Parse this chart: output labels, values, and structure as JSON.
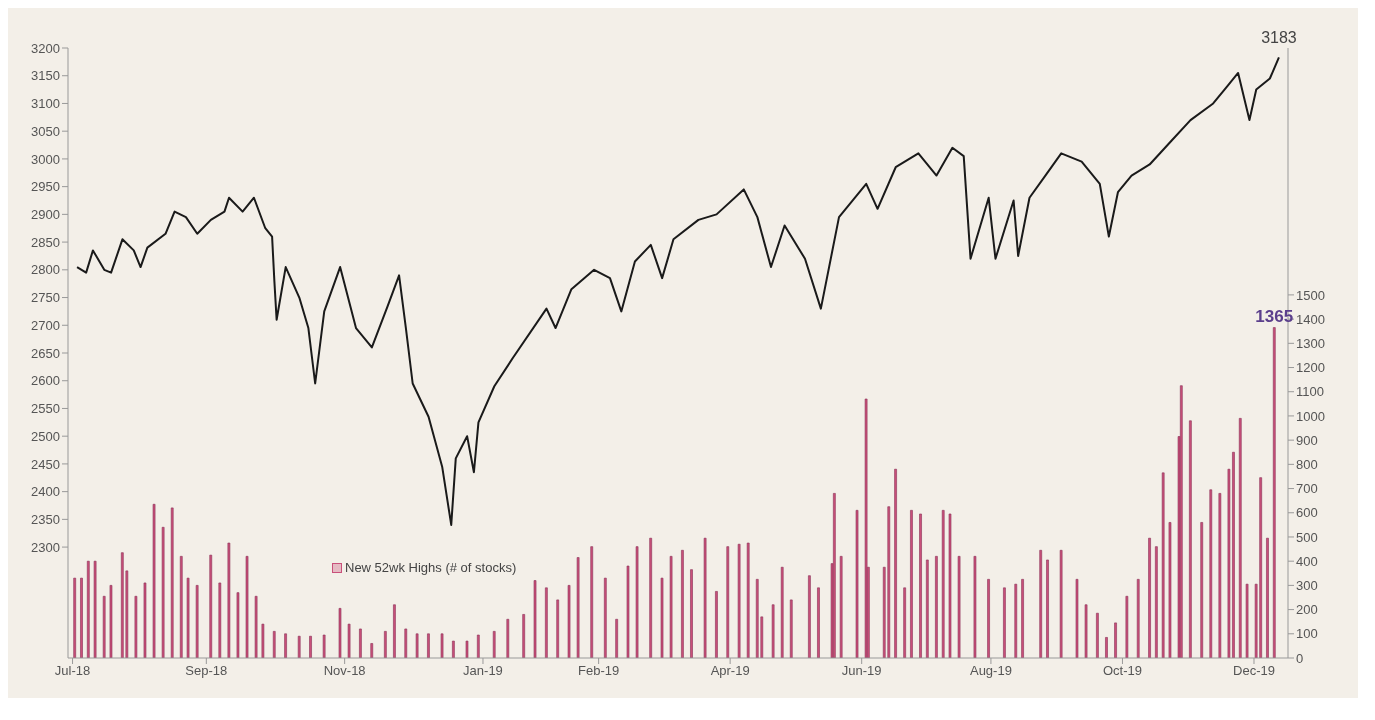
{
  "chart_data": {
    "type": "line",
    "xlim": [
      "2018-07-02",
      "2019-12-22"
    ],
    "xticks": [
      {
        "value": "2018-07-04",
        "label": "Jul-18"
      },
      {
        "value": "2018-09-01",
        "label": "Sep-18"
      },
      {
        "value": "2018-11-01",
        "label": "Nov-18"
      },
      {
        "value": "2019-01-01",
        "label": "Jan-19"
      },
      {
        "value": "2019-02-21",
        "label": "Feb-19"
      },
      {
        "value": "2019-04-20",
        "label": "Apr-19"
      },
      {
        "value": "2019-06-17",
        "label": "Jun-19"
      },
      {
        "value": "2019-08-13",
        "label": "Aug-19"
      },
      {
        "value": "2019-10-10",
        "label": "Oct-19"
      },
      {
        "value": "2019-12-07",
        "label": "Dec-19"
      }
    ],
    "ylim": [
      2100,
      3200
    ],
    "yticks": [
      2300,
      2350,
      2400,
      2450,
      2500,
      2550,
      2600,
      2650,
      2700,
      2750,
      2800,
      2850,
      2900,
      2950,
      3000,
      3050,
      3100,
      3150,
      3200
    ],
    "y2lim": [
      0,
      2520
    ],
    "y2ticks": [
      0,
      100,
      200,
      300,
      400,
      500,
      600,
      700,
      800,
      900,
      1000,
      1100,
      1200,
      1300,
      1400,
      1500
    ],
    "legend": "bottom left",
    "series": [
      {
        "color": "#1a1a1a",
        "x": [
          "2018-07-06",
          "2018-07-10",
          "2018-07-13",
          "2018-07-18",
          "2018-07-21",
          "2018-07-26",
          "2018-07-31",
          "2018-08-03",
          "2018-08-06",
          "2018-08-14",
          "2018-08-18",
          "2018-08-23",
          "2018-08-28",
          "2018-09-03",
          "2018-09-09",
          "2018-09-11",
          "2018-09-17",
          "2018-09-22",
          "2018-09-27",
          "2018-09-30",
          "2018-10-01",
          "2018-10-02",
          "2018-10-06",
          "2018-10-12",
          "2018-10-16",
          "2018-10-19",
          "2018-10-23",
          "2018-10-30",
          "2018-11-06",
          "2018-11-13",
          "2018-11-20",
          "2018-11-25",
          "2018-11-28",
          "2018-12-01",
          "2018-12-08",
          "2018-12-14",
          "2018-12-18",
          "2018-12-20",
          "2018-12-25",
          "2018-12-28",
          "2018-12-30",
          "2019-01-06",
          "2019-01-14",
          "2019-01-29",
          "2019-02-02",
          "2019-02-09",
          "2019-02-19",
          "2019-02-26",
          "2019-03-03",
          "2019-03-09",
          "2019-03-16",
          "2019-03-21",
          "2019-03-26",
          "2019-04-06",
          "2019-04-14",
          "2019-04-26",
          "2019-05-02",
          "2019-05-08",
          "2019-05-14",
          "2019-05-23",
          "2019-05-30",
          "2019-06-07",
          "2019-06-19",
          "2019-06-24",
          "2019-07-02",
          "2019-07-12",
          "2019-07-20",
          "2019-07-27",
          "2019-08-01",
          "2019-08-04",
          "2019-08-12",
          "2019-08-15",
          "2019-08-23",
          "2019-08-25",
          "2019-08-30",
          "2019-09-06",
          "2019-09-13",
          "2019-09-22",
          "2019-09-30",
          "2019-10-04",
          "2019-10-08",
          "2019-10-14",
          "2019-10-22",
          "2019-10-31",
          "2019-11-09",
          "2019-11-19",
          "2019-11-25",
          "2019-11-30",
          "2019-12-05",
          "2019-12-08",
          "2019-12-14",
          "2019-12-18"
        ],
        "values": [
          2805,
          2795,
          2835,
          2800,
          2795,
          2855,
          2835,
          2805,
          2840,
          2865,
          2905,
          2895,
          2865,
          2890,
          2905,
          2930,
          2905,
          2930,
          2875,
          2860,
          2780,
          2710,
          2805,
          2750,
          2695,
          2595,
          2725,
          2805,
          2695,
          2660,
          2735,
          2790,
          2695,
          2595,
          2535,
          2445,
          2340,
          2460,
          2500,
          2435,
          2525,
          2590,
          2640,
          2730,
          2695,
          2765,
          2800,
          2785,
          2725,
          2815,
          2845,
          2785,
          2855,
          2890,
          2900,
          2945,
          2895,
          2805,
          2880,
          2820,
          2730,
          2895,
          2955,
          2910,
          2985,
          3010,
          2970,
          3020,
          3005,
          2820,
          2930,
          2820,
          2925,
          2825,
          2930,
          2970,
          3010,
          2995,
          2955,
          2860,
          2940,
          2970,
          2990,
          3030,
          3070,
          3100,
          3130,
          3155,
          3070,
          3125,
          3145,
          3183
        ],
        "value_labels": [
          null,
          null,
          null,
          null,
          null,
          null,
          null,
          null,
          null,
          null,
          null,
          null,
          null,
          null,
          null,
          null,
          null,
          null,
          null,
          null,
          null,
          null,
          null,
          null,
          null,
          null,
          null,
          null,
          null,
          null,
          null,
          null,
          null,
          null,
          null,
          null,
          null,
          null,
          null,
          null,
          null,
          null,
          null,
          null,
          null,
          null,
          null,
          null,
          null,
          null,
          null,
          null,
          null,
          null,
          null,
          null,
          null,
          null,
          null,
          null,
          null,
          null,
          null,
          null,
          null,
          null,
          null,
          null,
          null,
          null,
          null,
          null,
          null,
          null,
          null,
          null,
          null,
          null,
          null,
          null,
          null,
          null,
          null,
          null,
          null,
          null,
          null,
          null,
          null,
          null,
          null,
          "3183"
        ]
      },
      {
        "type": "bar",
        "axis": "y2",
        "name": "New 52wk Highs (# of stocks)",
        "color": "#c9507a",
        "x": [
          "2018-07-05",
          "2018-07-08",
          "2018-07-11",
          "2018-07-14",
          "2018-07-18",
          "2018-07-21",
          "2018-07-26",
          "2018-07-28",
          "2018-08-01",
          "2018-08-05",
          "2018-08-09",
          "2018-08-13",
          "2018-08-17",
          "2018-08-21",
          "2018-08-24",
          "2018-08-28",
          "2018-09-03",
          "2018-09-07",
          "2018-09-11",
          "2018-09-15",
          "2018-09-19",
          "2018-09-23",
          "2018-09-26",
          "2018-10-01",
          "2018-10-06",
          "2018-10-12",
          "2018-10-17",
          "2018-10-23",
          "2018-10-30",
          "2018-11-03",
          "2018-11-08",
          "2018-11-13",
          "2018-11-19",
          "2018-11-23",
          "2018-11-28",
          "2018-12-03",
          "2018-12-08",
          "2018-12-14",
          "2018-12-19",
          "2018-12-25",
          "2018-12-30",
          "2019-01-06",
          "2019-01-12",
          "2019-01-19",
          "2019-01-24",
          "2019-01-29",
          "2019-02-03",
          "2019-02-08",
          "2019-02-12",
          "2019-02-18",
          "2019-02-24",
          "2019-03-01",
          "2019-03-06",
          "2019-03-10",
          "2019-03-16",
          "2019-03-21",
          "2019-03-25",
          "2019-03-30",
          "2019-04-03",
          "2019-04-09",
          "2019-04-14",
          "2019-04-19",
          "2019-04-24",
          "2019-04-28",
          "2019-05-02",
          "2019-05-04",
          "2019-05-09",
          "2019-05-13",
          "2019-05-17",
          "2019-05-25",
          "2019-05-29",
          "2019-06-04",
          "2019-06-05",
          "2019-06-08",
          "2019-06-15",
          "2019-06-19",
          "2019-06-20",
          "2019-06-27",
          "2019-06-29",
          "2019-07-02",
          "2019-07-06",
          "2019-07-09",
          "2019-07-13",
          "2019-07-16",
          "2019-07-20",
          "2019-07-23",
          "2019-07-26",
          "2019-07-30",
          "2019-08-06",
          "2019-08-12",
          "2019-08-19",
          "2019-08-24",
          "2019-08-27",
          "2019-09-04",
          "2019-09-07",
          "2019-09-13",
          "2019-09-20",
          "2019-09-24",
          "2019-09-29",
          "2019-10-03",
          "2019-10-07",
          "2019-10-12",
          "2019-10-17",
          "2019-10-22",
          "2019-10-25",
          "2019-10-28",
          "2019-10-31",
          "2019-11-04",
          "2019-11-05",
          "2019-11-09",
          "2019-11-14",
          "2019-11-18",
          "2019-11-22",
          "2019-11-26",
          "2019-11-28",
          "2019-12-01",
          "2019-12-04",
          "2019-12-08",
          "2019-12-10",
          "2019-12-13",
          "2019-12-16"
        ],
        "values": [
          330,
          330,
          400,
          400,
          255,
          300,
          435,
          360,
          255,
          310,
          635,
          540,
          620,
          420,
          330,
          300,
          425,
          310,
          475,
          270,
          420,
          255,
          140,
          110,
          100,
          90,
          90,
          95,
          205,
          140,
          120,
          60,
          110,
          220,
          120,
          100,
          100,
          100,
          70,
          70,
          95,
          110,
          160,
          180,
          320,
          290,
          240,
          300,
          415,
          460,
          330,
          160,
          380,
          460,
          495,
          330,
          420,
          445,
          365,
          495,
          275,
          460,
          470,
          475,
          325,
          170,
          220,
          375,
          240,
          340,
          290,
          390,
          680,
          420,
          610,
          1070,
          375,
          375,
          625,
          780,
          290,
          610,
          595,
          405,
          420,
          610,
          595,
          420,
          420,
          325,
          290,
          305,
          325,
          445,
          405,
          445,
          325,
          220,
          185,
          85,
          145,
          255,
          325,
          495,
          460,
          765,
          560,
          915,
          1125,
          980,
          560,
          695,
          680,
          780,
          850,
          990,
          305,
          305,
          745,
          495,
          1365
        ],
        "value_labels": [
          null,
          null,
          null,
          null,
          null,
          null,
          null,
          null,
          null,
          null,
          null,
          null,
          null,
          null,
          null,
          null,
          null,
          null,
          null,
          null,
          null,
          null,
          null,
          null,
          null,
          null,
          null,
          null,
          null,
          null,
          null,
          null,
          null,
          null,
          null,
          null,
          null,
          null,
          null,
          null,
          null,
          null,
          null,
          null,
          null,
          null,
          null,
          null,
          null,
          null,
          null,
          null,
          null,
          null,
          null,
          null,
          null,
          null,
          null,
          null,
          null,
          null,
          null,
          null,
          null,
          null,
          null,
          null,
          null,
          null,
          null,
          null,
          null,
          null,
          null,
          null,
          null,
          null,
          null,
          null,
          null,
          null,
          null,
          null,
          null,
          null,
          null,
          null,
          null,
          null,
          null,
          null,
          null,
          null,
          null,
          null,
          null,
          null,
          null,
          null,
          null,
          null,
          null,
          null,
          null,
          null,
          null,
          null,
          null,
          null,
          null,
          null,
          null,
          null,
          null,
          null,
          null,
          null,
          null,
          null,
          "1365"
        ]
      }
    ]
  }
}
